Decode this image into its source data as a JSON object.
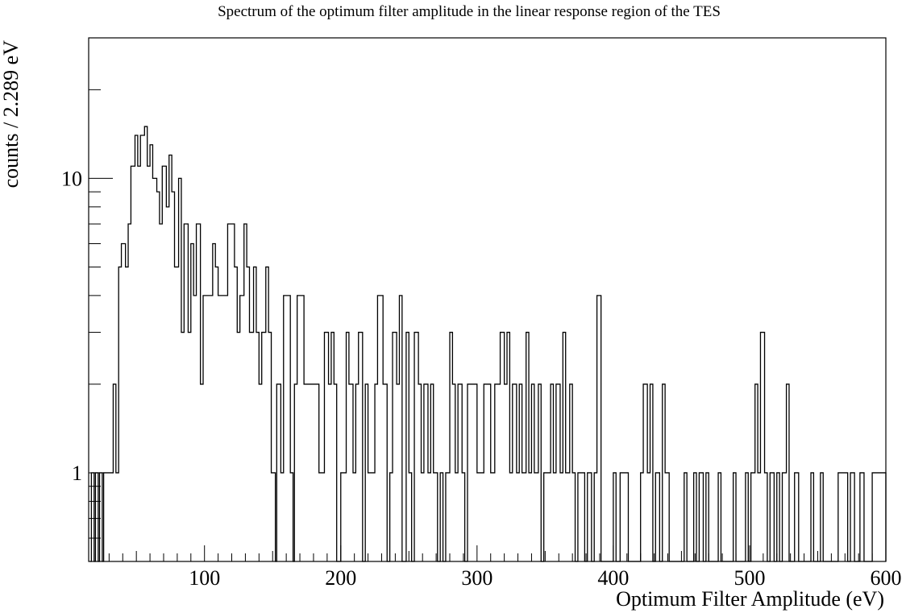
{
  "chart_data": {
    "type": "histogram",
    "title": "Spectrum of the optimum filter amplitude in the linear response region of the TES",
    "xlabel": "Optimum Filter Amplitude (eV)",
    "ylabel": "counts / 2.289 eV",
    "xlim": [
      15,
      600
    ],
    "ylim": [
      0.5,
      30
    ],
    "yscale": "log",
    "grid": false,
    "line_color": "#000000",
    "x_ticks": [
      100,
      200,
      300,
      400,
      500,
      600
    ],
    "x_tick_labels": [
      "100",
      "200",
      "300",
      "400",
      "500",
      "600"
    ],
    "y_ticks": [
      1,
      10
    ],
    "y_tick_labels": [
      "1",
      "10"
    ],
    "bin_width": 2.289,
    "bins": [
      [
        16,
        0
      ],
      [
        17,
        1
      ],
      [
        19,
        0
      ],
      [
        20,
        1
      ],
      [
        22,
        0
      ],
      [
        23,
        1
      ],
      [
        25,
        0
      ],
      [
        26,
        1
      ],
      [
        33,
        2
      ],
      [
        35,
        1
      ],
      [
        37,
        5
      ],
      [
        39,
        6
      ],
      [
        42,
        5
      ],
      [
        44,
        7
      ],
      [
        46,
        11
      ],
      [
        49,
        14
      ],
      [
        51,
        11
      ],
      [
        53,
        14
      ],
      [
        56,
        15
      ],
      [
        58,
        11
      ],
      [
        60,
        13
      ],
      [
        62,
        10
      ],
      [
        65,
        9
      ],
      [
        67,
        7
      ],
      [
        69,
        11
      ],
      [
        72,
        8
      ],
      [
        74,
        12
      ],
      [
        76,
        9
      ],
      [
        78,
        5
      ],
      [
        81,
        10
      ],
      [
        83,
        3
      ],
      [
        85,
        7
      ],
      [
        88,
        3
      ],
      [
        90,
        6
      ],
      [
        92,
        4
      ],
      [
        94,
        7
      ],
      [
        97,
        2
      ],
      [
        99,
        4
      ],
      [
        106,
        6
      ],
      [
        108,
        5
      ],
      [
        110,
        4
      ],
      [
        117,
        7
      ],
      [
        122,
        5
      ],
      [
        124,
        3
      ],
      [
        126,
        4
      ],
      [
        129,
        7
      ],
      [
        131,
        5
      ],
      [
        133,
        3
      ],
      [
        136,
        5
      ],
      [
        138,
        3
      ],
      [
        140,
        2
      ],
      [
        142,
        3
      ],
      [
        145,
        5
      ],
      [
        147,
        3
      ],
      [
        149,
        1
      ],
      [
        152,
        0
      ],
      [
        153,
        2
      ],
      [
        156,
        1
      ],
      [
        158,
        4
      ],
      [
        163,
        1
      ],
      [
        165,
        0
      ],
      [
        166,
        2
      ],
      [
        168,
        4
      ],
      [
        173,
        2
      ],
      [
        184,
        1
      ],
      [
        188,
        3
      ],
      [
        191,
        2
      ],
      [
        193,
        3
      ],
      [
        195,
        2
      ],
      [
        197,
        0
      ],
      [
        200,
        1
      ],
      [
        204,
        3
      ],
      [
        206,
        2
      ],
      [
        209,
        1
      ],
      [
        211,
        2
      ],
      [
        213,
        3
      ],
      [
        216,
        0
      ],
      [
        218,
        2
      ],
      [
        220,
        1
      ],
      [
        225,
        2
      ],
      [
        227,
        4
      ],
      [
        231,
        2
      ],
      [
        234,
        0
      ],
      [
        236,
        1
      ],
      [
        238,
        3
      ],
      [
        241,
        2
      ],
      [
        243,
        4
      ],
      [
        245,
        0
      ],
      [
        248,
        3
      ],
      [
        250,
        1
      ],
      [
        252,
        0
      ],
      [
        254,
        3
      ],
      [
        257,
        2
      ],
      [
        259,
        1
      ],
      [
        261,
        2
      ],
      [
        264,
        1
      ],
      [
        266,
        2
      ],
      [
        268,
        1
      ],
      [
        271,
        0
      ],
      [
        273,
        1
      ],
      [
        275,
        0
      ],
      [
        277,
        1
      ],
      [
        280,
        3
      ],
      [
        282,
        2
      ],
      [
        284,
        1
      ],
      [
        286,
        2
      ],
      [
        289,
        1
      ],
      [
        291,
        0
      ],
      [
        293,
        2
      ],
      [
        300,
        1
      ],
      [
        305,
        2
      ],
      [
        310,
        1
      ],
      [
        313,
        2
      ],
      [
        317,
        3
      ],
      [
        320,
        2
      ],
      [
        322,
        3
      ],
      [
        324,
        1
      ],
      [
        326,
        2
      ],
      [
        329,
        1
      ],
      [
        331,
        2
      ],
      [
        333,
        1
      ],
      [
        336,
        3
      ],
      [
        338,
        1
      ],
      [
        340,
        2
      ],
      [
        342,
        1
      ],
      [
        345,
        2
      ],
      [
        347,
        0
      ],
      [
        349,
        1
      ],
      [
        352,
        1
      ],
      [
        354,
        2
      ],
      [
        356,
        1
      ],
      [
        358,
        2
      ],
      [
        361,
        1
      ],
      [
        363,
        3
      ],
      [
        365,
        1
      ],
      [
        368,
        2
      ],
      [
        370,
        1
      ],
      [
        372,
        0
      ],
      [
        374,
        1
      ],
      [
        377,
        1
      ],
      [
        379,
        0
      ],
      [
        381,
        1
      ],
      [
        384,
        0
      ],
      [
        386,
        1
      ],
      [
        388,
        4
      ],
      [
        391,
        0
      ],
      [
        393,
        0
      ],
      [
        396,
        0
      ],
      [
        398,
        0
      ],
      [
        400,
        1
      ],
      [
        402,
        0
      ],
      [
        405,
        1
      ],
      [
        411,
        0
      ],
      [
        413,
        0
      ],
      [
        415,
        0
      ],
      [
        418,
        0
      ],
      [
        420,
        1
      ],
      [
        422,
        2
      ],
      [
        425,
        1
      ],
      [
        427,
        2
      ],
      [
        429,
        0
      ],
      [
        431,
        1
      ],
      [
        434,
        0
      ],
      [
        436,
        2
      ],
      [
        438,
        1
      ],
      [
        441,
        0
      ],
      [
        443,
        0
      ],
      [
        450,
        0
      ],
      [
        452,
        1
      ],
      [
        454,
        0
      ],
      [
        457,
        0
      ],
      [
        459,
        1
      ],
      [
        461,
        0
      ],
      [
        463,
        1
      ],
      [
        466,
        0
      ],
      [
        468,
        1
      ],
      [
        470,
        0
      ],
      [
        477,
        1
      ],
      [
        479,
        0
      ],
      [
        481,
        0
      ],
      [
        486,
        0
      ],
      [
        488,
        1
      ],
      [
        490,
        0
      ],
      [
        495,
        0
      ],
      [
        497,
        1
      ],
      [
        499,
        0
      ],
      [
        501,
        1
      ],
      [
        504,
        2
      ],
      [
        506,
        1
      ],
      [
        508,
        3
      ],
      [
        511,
        1
      ],
      [
        513,
        0
      ],
      [
        515,
        1
      ],
      [
        518,
        0
      ],
      [
        520,
        1
      ],
      [
        522,
        0
      ],
      [
        524,
        1
      ],
      [
        527,
        2
      ],
      [
        529,
        0
      ],
      [
        533,
        1
      ],
      [
        536,
        0
      ],
      [
        545,
        1
      ],
      [
        547,
        0
      ],
      [
        552,
        1
      ],
      [
        554,
        0
      ],
      [
        559,
        0
      ],
      [
        565,
        1
      ],
      [
        572,
        0
      ],
      [
        574,
        1
      ],
      [
        577,
        0
      ],
      [
        579,
        0
      ],
      [
        581,
        1
      ],
      [
        584,
        0
      ],
      [
        590,
        1
      ],
      [
        593,
        1
      ],
      [
        597,
        1
      ],
      [
        600,
        0
      ]
    ]
  }
}
